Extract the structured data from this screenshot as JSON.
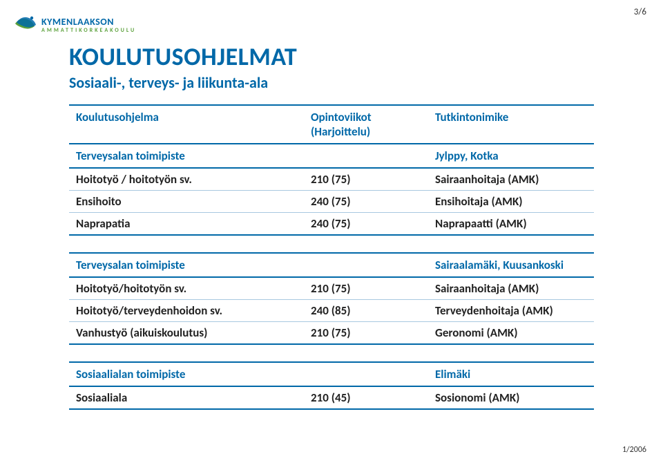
{
  "page_number": "3/6",
  "footer_date": "1/2006",
  "logo": {
    "line1": "KYMENLAAKSON",
    "line2": "AMMATTIKORKEAKOULU"
  },
  "title": "KOULUTUSOHJELMAT",
  "subtitle": "Sosiaali-, terveys- ja liikunta-ala",
  "colors": {
    "brand_blue": "#0068a8",
    "logo_green": "#5aa03a",
    "row_border": "#a8c8e0",
    "text": "#222222",
    "bg": "#ffffff"
  },
  "typography": {
    "title_fontsize": 36,
    "subtitle_fontsize": 22,
    "cell_fontsize": 17,
    "pagenum_fontsize": 13
  },
  "table1": {
    "headers": [
      "Koulutusohjelma",
      "Opintoviikot (Harjoittelu)",
      "Tutkintonimike"
    ],
    "section": {
      "label": "Terveysalan toimipiste",
      "location": "Jylppy, Kotka"
    },
    "rows": [
      {
        "c1": "Hoitotyö / hoitotyön sv.",
        "c2": "210 (75)",
        "c3": "Sairaanhoitaja (AMK)"
      },
      {
        "c1": "Ensihoito",
        "c2": "240 (75)",
        "c3": "Ensihoitaja (AMK)"
      },
      {
        "c1": "Naprapatia",
        "c2": "240 (75)",
        "c3": "Naprapaatti (AMK)"
      }
    ]
  },
  "table2": {
    "section": {
      "label": "Terveysalan toimipiste",
      "location": "Sairaalamäki, Kuusankoski"
    },
    "rows": [
      {
        "c1": "Hoitotyö/hoitotyön sv.",
        "c2": "210 (75)",
        "c3": "Sairaanhoitaja (AMK)"
      },
      {
        "c1": "Hoitotyö/terveydenhoidon sv.",
        "c2": "240 (85)",
        "c3": "Terveydenhoitaja (AMK)"
      },
      {
        "c1": "Vanhustyö (aikuiskoulutus)",
        "c2": "210 (75)",
        "c3": "Geronomi (AMK)"
      }
    ]
  },
  "table3": {
    "section": {
      "label": "Sosiaalialan toimipiste",
      "location": "Elimäki"
    },
    "rows": [
      {
        "c1": "Sosiaaliala",
        "c2": "210 (45)",
        "c3": "Sosionomi (AMK)"
      }
    ]
  }
}
